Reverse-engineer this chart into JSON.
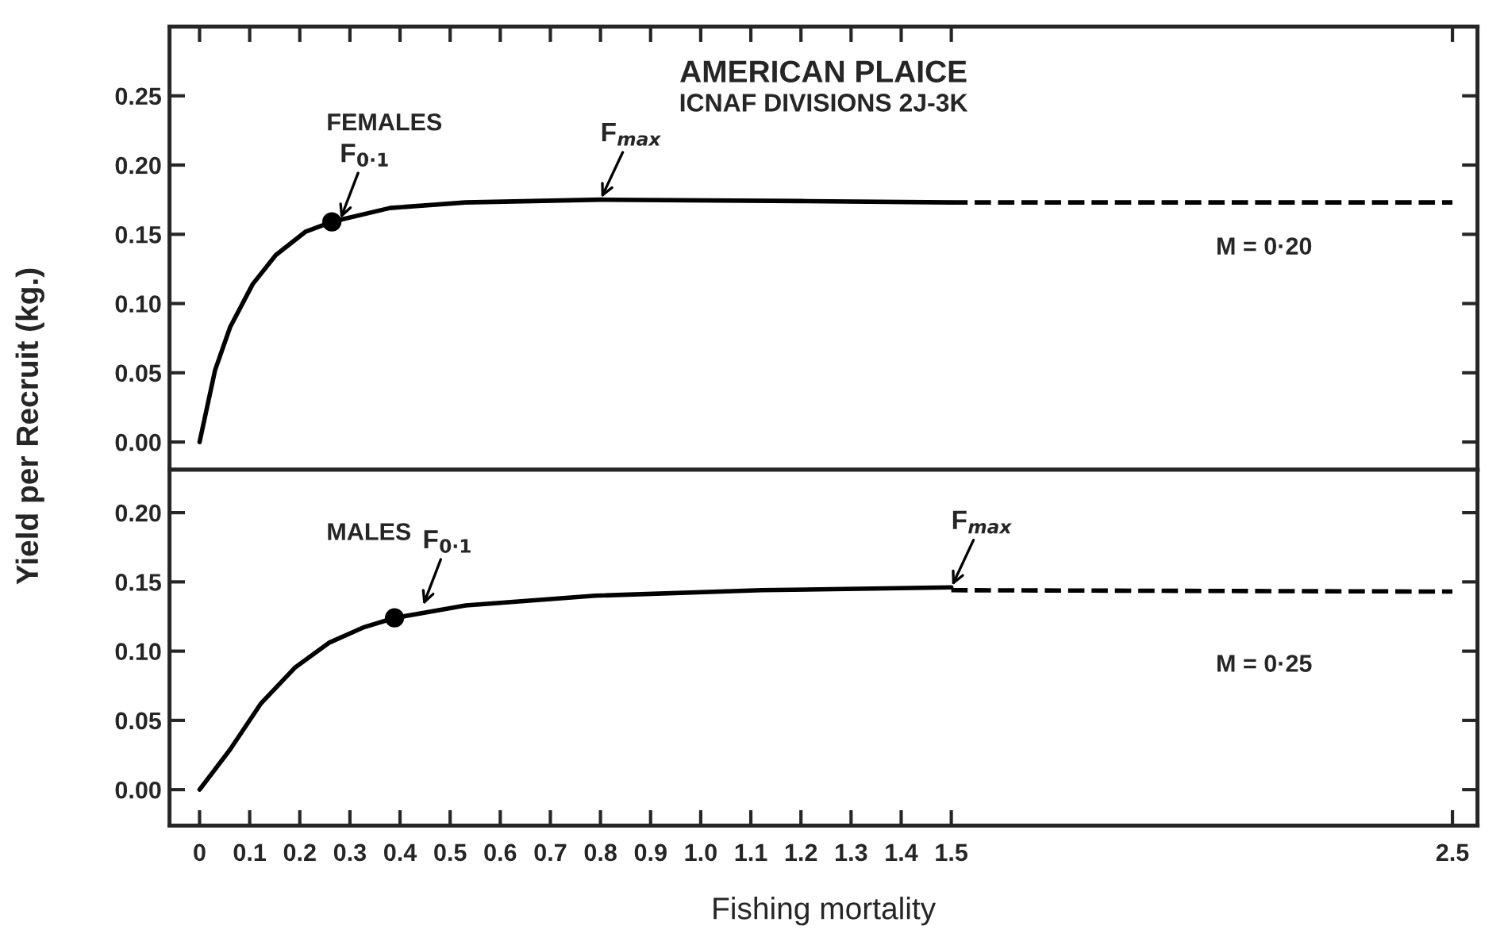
{
  "chart_data": [
    {
      "type": "line",
      "title": "AMERICAN PLAICE",
      "subtitle": "ICNAF DIVISIONS 2J-3K",
      "ylabel": "Yield per Recruit (kg.)",
      "series": [
        {
          "color": "#000000",
          "line_style": "solid",
          "marker": "none",
          "x": [
            0,
            0.031,
            0.061,
            0.106,
            0.152,
            0.212,
            0.264,
            0.38,
            0.53,
            0.8,
            1.2,
            1.5
          ],
          "values": [
            0,
            0.052,
            0.083,
            0.114,
            0.135,
            0.152,
            0.159,
            0.169,
            0.173,
            0.175,
            0.174,
            0.173
          ]
        },
        {
          "color": "#000000",
          "line_style": "dashed",
          "marker": "none",
          "x": [
            1.5,
            2.5
          ],
          "values": [
            0.173,
            0.173
          ]
        },
        {
          "type": "scatter",
          "color": "#000000",
          "marker": "circle",
          "x": [
            0.264
          ],
          "values": [
            0.159
          ]
        }
      ],
      "annotations": [
        "FEMALES",
        "M = 0·20",
        {
          "text": "F$_{0·1}$",
          "x": 0.28,
          "y": 0.16
        },
        {
          "text": "F$_{max}$",
          "x": 0.8,
          "y": 0.175
        }
      ],
      "xlim": [
        -0.06,
        2.55
      ],
      "ylim": [
        -0.02,
        0.3
      ],
      "xticks": [
        0,
        0.1,
        0.2,
        0.3,
        0.4,
        0.5,
        0.6,
        0.7,
        0.8,
        0.9,
        1.0,
        1.1,
        1.2,
        1.3,
        1.4,
        1.5,
        2.5
      ],
      "yticks": [
        {
          "value": 0,
          "label": "0.00"
        },
        {
          "value": 0.05,
          "label": "0.05"
        },
        {
          "value": 0.1,
          "label": "0.10"
        },
        {
          "value": 0.15,
          "label": "0.15"
        },
        {
          "value": 0.2,
          "label": "0.20"
        },
        {
          "value": 0.25,
          "label": "0.25"
        }
      ],
      "tick_labels": "y",
      "grid": false,
      "legend": false
    },
    {
      "type": "line",
      "xlabel": "Fishing mortality",
      "series": [
        {
          "color": "#000000",
          "line_style": "solid",
          "marker": "none",
          "x": [
            0,
            0.061,
            0.122,
            0.19,
            0.258,
            0.326,
            0.389,
            0.531,
            0.789,
            1.122,
            1.5
          ],
          "values": [
            0,
            0.029,
            0.062,
            0.088,
            0.106,
            0.117,
            0.124,
            0.133,
            0.14,
            0.144,
            0.146
          ]
        },
        {
          "color": "#000000",
          "line_style": "dashed",
          "marker": "none",
          "x": [
            1.5,
            2.5
          ],
          "values": [
            0.144,
            0.143
          ]
        },
        {
          "type": "scatter",
          "color": "#000000",
          "marker": "circle",
          "x": [
            0.389
          ],
          "values": [
            0.124
          ]
        }
      ],
      "annotations": [
        "MALES",
        "M = 0·25",
        {
          "text": "F$_{0·1}$",
          "x": 0.445,
          "y": 0.132
        },
        {
          "text": "F$_{max}$",
          "x": 1.5,
          "y": 0.146
        }
      ],
      "xlim": [
        -0.06,
        2.55
      ],
      "ylim": [
        -0.026,
        0.231
      ],
      "xticks": [
        0,
        0.1,
        0.2,
        0.3,
        0.4,
        0.5,
        0.6,
        0.7,
        0.8,
        0.9,
        {
          "value": 1.0,
          "label": "1.0"
        },
        1.1,
        1.2,
        1.3,
        1.4,
        1.5,
        2.5
      ],
      "yticks": [
        {
          "value": 0,
          "label": "0.00"
        },
        {
          "value": 0.05,
          "label": "0.05"
        },
        {
          "value": 0.1,
          "label": "0.10"
        },
        {
          "value": 0.15,
          "label": "0.15"
        },
        {
          "value": 0.2,
          "label": "0.20"
        }
      ],
      "grid": false,
      "legend": false
    }
  ]
}
